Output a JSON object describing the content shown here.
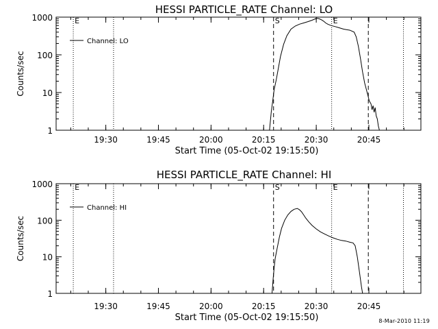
{
  "footer": {
    "timestamp": "8-Mar-2010 11:19"
  },
  "chart_data": [
    {
      "type": "line",
      "title": "HESSI PARTICLE_RATE Channel: LO",
      "xlabel": "Start Time (05-Oct-02 19:15:50)",
      "ylabel": "Counts/sec",
      "y_scale": "log",
      "xlim": [
        19.2639,
        20.9972
      ],
      "ylim": [
        1,
        1000
      ],
      "x_tick_labels": [
        {
          "x": 19.5,
          "label": "19:30"
        },
        {
          "x": 19.75,
          "label": "19:45"
        },
        {
          "x": 20.0,
          "label": "20:00"
        },
        {
          "x": 20.25,
          "label": "20:15"
        },
        {
          "x": 20.5,
          "label": "20:30"
        },
        {
          "x": 20.75,
          "label": "20:45"
        }
      ],
      "y_tick_labels": [
        {
          "y": 1,
          "label": "1"
        },
        {
          "y": 10,
          "label": "10"
        },
        {
          "y": 100,
          "label": "100"
        },
        {
          "y": 1000,
          "label": "1000"
        }
      ],
      "legend": {
        "placement": "top-left",
        "entries": [
          "Channel: LO"
        ]
      },
      "vlines": [
        {
          "x": 19.3455,
          "style": "dotted",
          "label": "E"
        },
        {
          "x": 19.5368,
          "style": "dotted"
        },
        {
          "x": 20.2971,
          "style": "dashed",
          "label": "S"
        },
        {
          "x": 20.5732,
          "style": "dotted",
          "label": "E"
        },
        {
          "x": 20.7474,
          "style": "dashed"
        },
        {
          "x": 20.9143,
          "style": "dotted"
        }
      ],
      "series": [
        {
          "name": "Channel: LO",
          "x": [
            20.278,
            20.286,
            20.293,
            20.3,
            20.31,
            20.32,
            20.33,
            20.345,
            20.36,
            20.38,
            20.4,
            20.42,
            20.44,
            20.46,
            20.48,
            20.495,
            20.505,
            20.515,
            20.525,
            20.535,
            20.545,
            20.555,
            20.57,
            20.59,
            20.61,
            20.63,
            20.66,
            20.68,
            20.69,
            20.7,
            20.71,
            20.72,
            20.73,
            20.74,
            20.752,
            20.76,
            20.765,
            20.77,
            20.775,
            20.78,
            20.785,
            20.79,
            20.795,
            20.8
          ],
          "y": [
            1,
            3,
            6,
            12,
            22,
            45,
            90,
            190,
            320,
            480,
            580,
            650,
            700,
            760,
            830,
            900,
            930,
            900,
            850,
            780,
            700,
            650,
            600,
            560,
            520,
            480,
            450,
            400,
            300,
            170,
            80,
            35,
            18,
            11,
            6,
            5,
            3.5,
            4.5,
            3,
            4,
            2.4,
            2,
            1.3,
            1
          ]
        }
      ]
    },
    {
      "type": "line",
      "title": "HESSI PARTICLE_RATE Channel: HI",
      "xlabel": "Start Time (05-Oct-02 19:15:50)",
      "ylabel": "Counts/sec",
      "y_scale": "log",
      "xlim": [
        19.2639,
        20.9972
      ],
      "ylim": [
        1,
        1000
      ],
      "x_tick_labels": [
        {
          "x": 19.5,
          "label": "19:30"
        },
        {
          "x": 19.75,
          "label": "19:45"
        },
        {
          "x": 20.0,
          "label": "20:00"
        },
        {
          "x": 20.25,
          "label": "20:15"
        },
        {
          "x": 20.5,
          "label": "20:30"
        },
        {
          "x": 20.75,
          "label": "20:45"
        }
      ],
      "y_tick_labels": [
        {
          "y": 1,
          "label": "1"
        },
        {
          "y": 10,
          "label": "10"
        },
        {
          "y": 100,
          "label": "100"
        },
        {
          "y": 1000,
          "label": "1000"
        }
      ],
      "legend": {
        "placement": "top-left",
        "entries": [
          "Channel: HI"
        ]
      },
      "vlines": [
        {
          "x": 19.3455,
          "style": "dotted",
          "label": "E"
        },
        {
          "x": 19.5368,
          "style": "dotted"
        },
        {
          "x": 20.2971,
          "style": "dashed",
          "label": "S"
        },
        {
          "x": 20.5732,
          "style": "dotted",
          "label": "E"
        },
        {
          "x": 20.7474,
          "style": "dashed"
        },
        {
          "x": 20.9143,
          "style": "dotted"
        }
      ],
      "series": [
        {
          "name": "Channel: HI",
          "x": [
            20.29,
            20.295,
            20.3,
            20.305,
            20.315,
            20.325,
            20.335,
            20.35,
            20.365,
            20.38,
            20.395,
            20.41,
            20.42,
            20.43,
            20.44,
            20.45,
            20.465,
            20.48,
            20.5,
            20.52,
            20.54,
            20.56,
            20.58,
            20.6,
            20.62,
            20.64,
            20.66,
            20.675,
            20.685,
            20.695,
            20.705,
            20.715,
            20.72
          ],
          "y": [
            1,
            2.5,
            5,
            9,
            18,
            35,
            60,
            100,
            140,
            175,
            200,
            210,
            195,
            170,
            140,
            115,
            90,
            72,
            58,
            48,
            42,
            37,
            33,
            30,
            28,
            27,
            25,
            24,
            20,
            10,
            4,
            1.5,
            1
          ]
        }
      ]
    }
  ]
}
